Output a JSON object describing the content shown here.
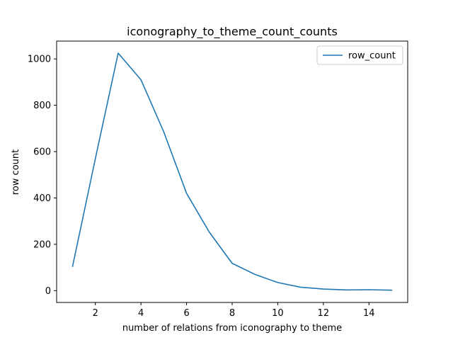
{
  "chart_data": {
    "type": "line",
    "title": "iconography_to_theme_count_counts",
    "xlabel": "number of relations from iconography to theme",
    "ylabel": "row count",
    "xlim": [
      0.3,
      15.7
    ],
    "ylim": [
      -51,
      1077
    ],
    "xticks": [
      2,
      4,
      6,
      8,
      10,
      12,
      14
    ],
    "yticks": [
      0,
      200,
      400,
      600,
      800,
      1000
    ],
    "grid": false,
    "legend_position": "top-right",
    "series": [
      {
        "name": "row_count",
        "color": "#1f77b4",
        "x": [
          1,
          2,
          3,
          4,
          5,
          6,
          7,
          8,
          9,
          10,
          11,
          12,
          13,
          14,
          15
        ],
        "y": [
          105,
          570,
          1025,
          910,
          685,
          420,
          252,
          118,
          70,
          35,
          15,
          7,
          3,
          4,
          2
        ]
      }
    ]
  }
}
